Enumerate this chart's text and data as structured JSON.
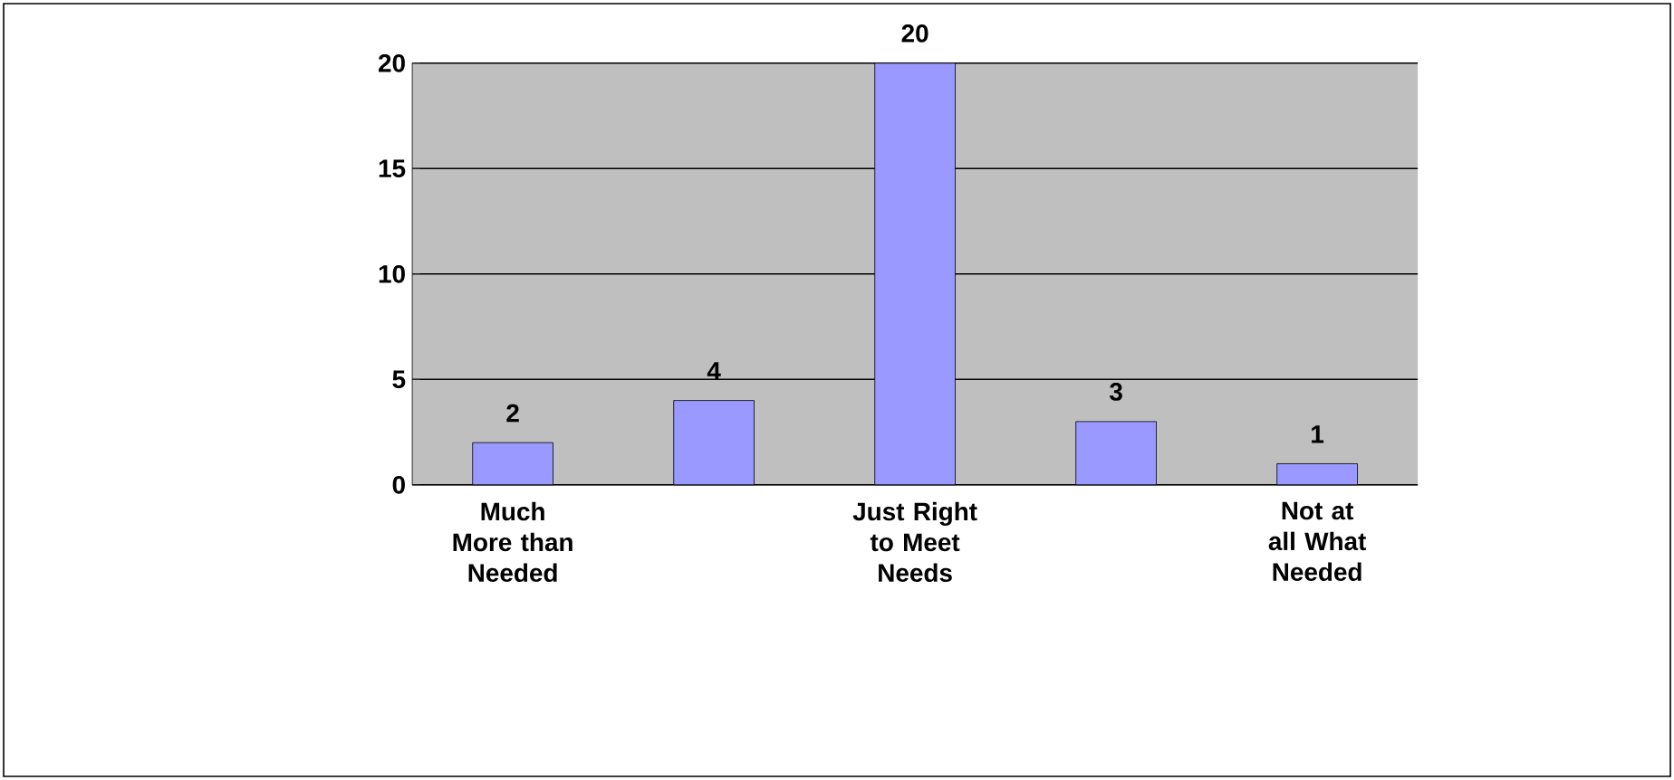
{
  "chart_data": {
    "type": "bar",
    "categories": [
      "Much More than Needed",
      null,
      "Just Right to Meet Needs",
      null,
      "Not at all What Needed"
    ],
    "values": [
      2,
      4,
      20,
      3,
      1
    ],
    "color": "#9999ff",
    "ylim": [
      0,
      20
    ],
    "yticks": [
      0,
      5,
      10,
      15,
      20
    ],
    "grid": "y",
    "data_labels": true
  }
}
